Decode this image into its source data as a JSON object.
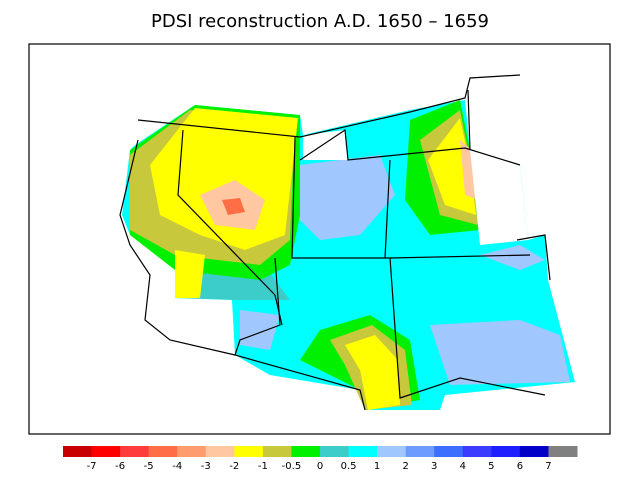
{
  "title": "PDSI reconstruction A.D. 1650 – 1659",
  "colorbar": {
    "labels": [
      -7,
      -6,
      -5,
      -4,
      -3,
      -2,
      -1,
      -0.5,
      0,
      0.5,
      1,
      2,
      3,
      4,
      5,
      6,
      7
    ],
    "colors": [
      "#c80000",
      "#ff0000",
      "#ff3c3c",
      "#ff6e46",
      "#ff9c6e",
      "#ffc8a0",
      "#ffff00",
      "#c8c83c",
      "#00f000",
      "#3ccdc8",
      "#00ffff",
      "#a0c8ff",
      "#6e9bff",
      "#3c6eff",
      "#3c3cff",
      "#1e1eff",
      "#0000c8",
      "#808080"
    ]
  }
}
